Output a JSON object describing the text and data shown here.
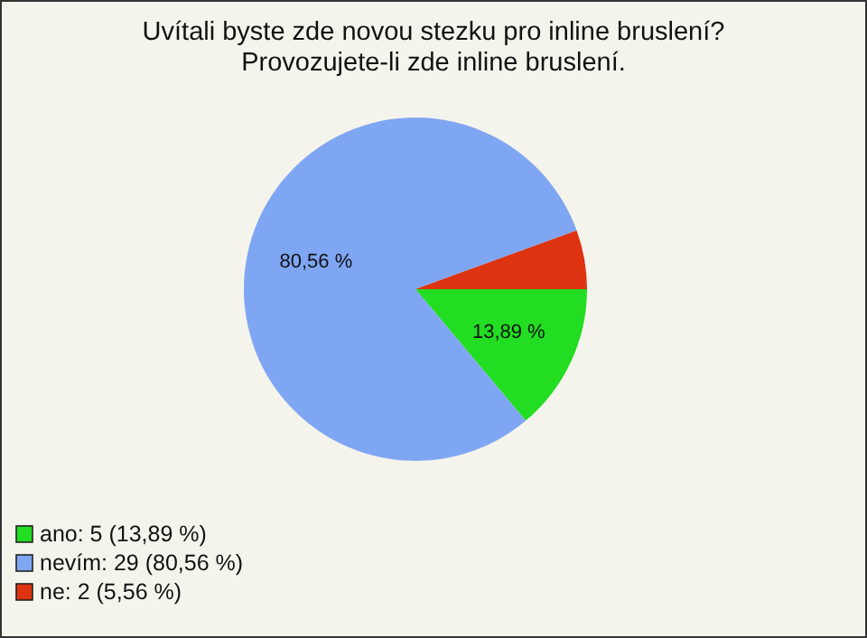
{
  "chart_data": {
    "type": "pie",
    "title": "Uvítali byste zde novou stezku pro inline bruslení? Provozujete-li zde inline bruslení.",
    "categories": [
      "ano: 5 (13,89 %)",
      "nevím: 29 (80,56 %)",
      "ne: 2 (5,56 %)"
    ],
    "values": [
      13.89,
      80.56,
      5.56
    ],
    "value_labels": [
      "13,89 %",
      "80,56 %",
      null
    ],
    "colors": [
      "#22dd22",
      "#7fa6f2",
      "#dd3311"
    ],
    "legend": "bottom left"
  }
}
